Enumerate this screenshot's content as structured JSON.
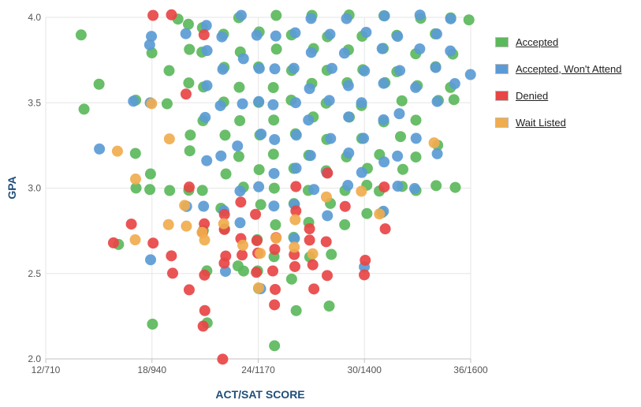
{
  "chart_data": {
    "type": "scatter",
    "xlabel": "ACT/SAT SCORE",
    "ylabel": "GPA",
    "x_ticks": [
      "12/710",
      "18/940",
      "24/1170",
      "30/1400",
      "36/1600"
    ],
    "y_ticks": [
      "2.0",
      "2.5",
      "3.0",
      "3.5",
      "4.0"
    ],
    "xlim": [
      12,
      36
    ],
    "ylim": [
      2.0,
      4.0
    ],
    "grid": true,
    "legend_position": "right",
    "series": [
      {
        "name": "Accepted",
        "color": "#5cb85c",
        "points": [
          [
            14,
            3.9
          ],
          [
            14,
            3.45
          ],
          [
            15,
            3.6
          ],
          [
            17,
            3.0
          ],
          [
            17,
            3.2
          ],
          [
            17,
            3.5
          ],
          [
            16,
            2.67
          ],
          [
            18,
            2.2
          ],
          [
            18,
            3.0
          ],
          [
            18,
            3.1
          ],
          [
            18,
            3.8
          ],
          [
            19,
            3.7
          ],
          [
            19,
            3.5
          ],
          [
            19,
            3.0
          ],
          [
            19.5,
            4.0
          ],
          [
            20,
            3.0
          ],
          [
            20,
            3.3
          ],
          [
            20,
            3.6
          ],
          [
            20,
            3.8
          ],
          [
            20,
            3.95
          ],
          [
            20,
            3.2
          ],
          [
            21,
            2.5
          ],
          [
            21,
            2.2
          ],
          [
            21,
            2.77
          ],
          [
            21,
            3.0
          ],
          [
            21,
            3.4
          ],
          [
            21,
            3.6
          ],
          [
            21,
            3.8
          ],
          [
            21,
            3.95
          ],
          [
            22,
            2.9
          ],
          [
            22,
            3.1
          ],
          [
            22,
            3.3
          ],
          [
            22,
            3.5
          ],
          [
            22,
            3.7
          ],
          [
            22,
            3.9
          ],
          [
            22,
            2.75
          ],
          [
            23,
            2.5
          ],
          [
            23,
            3.0
          ],
          [
            23,
            3.2
          ],
          [
            23,
            3.4
          ],
          [
            23,
            3.6
          ],
          [
            23,
            3.8
          ],
          [
            23,
            4.0
          ],
          [
            23,
            2.55
          ],
          [
            24,
            2.7
          ],
          [
            24,
            2.9
          ],
          [
            24,
            3.1
          ],
          [
            24,
            3.3
          ],
          [
            24,
            3.5
          ],
          [
            24,
            3.7
          ],
          [
            24,
            3.9
          ],
          [
            24,
            2.4
          ],
          [
            24,
            2.5
          ],
          [
            25,
            2.08
          ],
          [
            25,
            2.6
          ],
          [
            25,
            2.8
          ],
          [
            25,
            3.0
          ],
          [
            25,
            3.2
          ],
          [
            25,
            3.4
          ],
          [
            25,
            3.6
          ],
          [
            25,
            3.8
          ],
          [
            25,
            4.0
          ],
          [
            26,
            2.27
          ],
          [
            26,
            2.7
          ],
          [
            26,
            2.9
          ],
          [
            26,
            3.1
          ],
          [
            26,
            3.3
          ],
          [
            26,
            3.5
          ],
          [
            26,
            3.7
          ],
          [
            26,
            3.9
          ],
          [
            26,
            2.48
          ],
          [
            27,
            2.6
          ],
          [
            27,
            2.8
          ],
          [
            27,
            3.0
          ],
          [
            27,
            3.2
          ],
          [
            27,
            3.4
          ],
          [
            27,
            3.6
          ],
          [
            27,
            3.8
          ],
          [
            27,
            4.0
          ],
          [
            28,
            2.3
          ],
          [
            28,
            2.6
          ],
          [
            28,
            2.9
          ],
          [
            28,
            3.1
          ],
          [
            28,
            3.3
          ],
          [
            28,
            3.5
          ],
          [
            28,
            3.7
          ],
          [
            28,
            3.9
          ],
          [
            29,
            2.8
          ],
          [
            29,
            3.0
          ],
          [
            29,
            3.2
          ],
          [
            29,
            3.4
          ],
          [
            29,
            3.6
          ],
          [
            29,
            3.8
          ],
          [
            29,
            4.0
          ],
          [
            30,
            2.85
          ],
          [
            30,
            3.0
          ],
          [
            30,
            3.1
          ],
          [
            30,
            3.3
          ],
          [
            30,
            3.5
          ],
          [
            30,
            3.7
          ],
          [
            30,
            3.9
          ],
          [
            31,
            2.87
          ],
          [
            31,
            3.0
          ],
          [
            31,
            3.2
          ],
          [
            31,
            3.4
          ],
          [
            31,
            3.6
          ],
          [
            31,
            3.8
          ],
          [
            31,
            4.0
          ],
          [
            32,
            3.0
          ],
          [
            32,
            3.1
          ],
          [
            32,
            3.3
          ],
          [
            32,
            3.5
          ],
          [
            32,
            3.7
          ],
          [
            32,
            3.9
          ],
          [
            33,
            3.0
          ],
          [
            33,
            3.2
          ],
          [
            33,
            3.4
          ],
          [
            33,
            3.6
          ],
          [
            33,
            3.8
          ],
          [
            33,
            4.0
          ],
          [
            34,
            3.0
          ],
          [
            34,
            3.25
          ],
          [
            34,
            3.5
          ],
          [
            34,
            3.7
          ],
          [
            34,
            3.9
          ],
          [
            35,
            3.0
          ],
          [
            35,
            3.5
          ],
          [
            35,
            3.6
          ],
          [
            35,
            3.8
          ],
          [
            35,
            4.0
          ],
          [
            36,
            4.0
          ]
        ]
      },
      {
        "name": "Accepted, Won't Attend",
        "color": "#5b9bd5",
        "points": [
          [
            15,
            3.22
          ],
          [
            17,
            3.5
          ],
          [
            18,
            2.59
          ],
          [
            18,
            3.5
          ],
          [
            18,
            3.85
          ],
          [
            18,
            3.9
          ],
          [
            20,
            2.9
          ],
          [
            20,
            3.92
          ],
          [
            21,
            2.9
          ],
          [
            21,
            3.15
          ],
          [
            21,
            3.4
          ],
          [
            21,
            3.6
          ],
          [
            21,
            3.8
          ],
          [
            21,
            3.95
          ],
          [
            22,
            2.51
          ],
          [
            22,
            2.85
          ],
          [
            22,
            3.2
          ],
          [
            22,
            3.5
          ],
          [
            22,
            3.7
          ],
          [
            22,
            3.9
          ],
          [
            23,
            2.8
          ],
          [
            23,
            3.0
          ],
          [
            23,
            3.25
          ],
          [
            23,
            3.5
          ],
          [
            23,
            3.75
          ],
          [
            23,
            4.0
          ],
          [
            24,
            2.4
          ],
          [
            24,
            3.0
          ],
          [
            24,
            3.3
          ],
          [
            24,
            3.5
          ],
          [
            24,
            3.7
          ],
          [
            24,
            3.9
          ],
          [
            25,
            2.9
          ],
          [
            25,
            3.1
          ],
          [
            25,
            3.3
          ],
          [
            25,
            3.5
          ],
          [
            25,
            3.7
          ],
          [
            25,
            3.9
          ],
          [
            26,
            2.72
          ],
          [
            26,
            2.9
          ],
          [
            26,
            3.1
          ],
          [
            26,
            3.3
          ],
          [
            26,
            3.5
          ],
          [
            26,
            3.7
          ],
          [
            26,
            3.9
          ],
          [
            27,
            2.98
          ],
          [
            27,
            3.2
          ],
          [
            27,
            3.4
          ],
          [
            27,
            3.6
          ],
          [
            27,
            3.8
          ],
          [
            27,
            4.0
          ],
          [
            28,
            2.85
          ],
          [
            28,
            3.1
          ],
          [
            28,
            3.3
          ],
          [
            28,
            3.5
          ],
          [
            28,
            3.7
          ],
          [
            28,
            3.9
          ],
          [
            29,
            3.0
          ],
          [
            29,
            3.2
          ],
          [
            29,
            3.4
          ],
          [
            29,
            3.6
          ],
          [
            29,
            3.8
          ],
          [
            29,
            4.0
          ],
          [
            30,
            2.55
          ],
          [
            30,
            3.1
          ],
          [
            30,
            3.3
          ],
          [
            30,
            3.5
          ],
          [
            30,
            3.7
          ],
          [
            30,
            3.9
          ],
          [
            31,
            2.85
          ],
          [
            31,
            3.15
          ],
          [
            31,
            3.4
          ],
          [
            31,
            3.6
          ],
          [
            31,
            3.8
          ],
          [
            31,
            4.0
          ],
          [
            32,
            3.0
          ],
          [
            32,
            3.2
          ],
          [
            32,
            3.45
          ],
          [
            32,
            3.7
          ],
          [
            32,
            3.9
          ],
          [
            33,
            3.0
          ],
          [
            33,
            3.3
          ],
          [
            33,
            3.6
          ],
          [
            33,
            3.8
          ],
          [
            33,
            4.0
          ],
          [
            34,
            3.2
          ],
          [
            34,
            3.5
          ],
          [
            34,
            3.7
          ],
          [
            34,
            3.9
          ],
          [
            35,
            3.6
          ],
          [
            35,
            3.8
          ],
          [
            35,
            4.0
          ],
          [
            36,
            3.67
          ]
        ]
      },
      {
        "name": "Denied",
        "color": "#e84545",
        "points": [
          [
            16,
            2.69
          ],
          [
            17,
            2.8
          ],
          [
            18,
            2.67
          ],
          [
            18,
            4.0
          ],
          [
            19,
            2.5
          ],
          [
            19,
            2.6
          ],
          [
            19,
            4.0
          ],
          [
            20,
            2.4
          ],
          [
            20,
            3.0
          ],
          [
            20,
            3.55
          ],
          [
            21,
            2.2
          ],
          [
            21,
            2.3
          ],
          [
            21,
            2.5
          ],
          [
            21,
            2.75
          ],
          [
            21,
            2.8
          ],
          [
            21,
            3.9
          ],
          [
            22,
            2.0
          ],
          [
            22,
            2.55
          ],
          [
            22,
            2.6
          ],
          [
            22,
            2.75
          ],
          [
            22,
            2.83
          ],
          [
            23,
            2.6
          ],
          [
            23,
            2.7
          ],
          [
            23,
            2.9
          ],
          [
            24,
            2.5
          ],
          [
            24,
            2.62
          ],
          [
            24,
            2.7
          ],
          [
            24,
            2.85
          ],
          [
            25,
            2.33
          ],
          [
            25,
            2.42
          ],
          [
            25,
            2.53
          ],
          [
            25,
            2.65
          ],
          [
            25,
            2.7
          ],
          [
            26,
            2.53
          ],
          [
            26,
            2.6
          ],
          [
            26,
            2.85
          ],
          [
            26,
            3.0
          ],
          [
            27,
            2.4
          ],
          [
            27,
            2.55
          ],
          [
            27,
            2.7
          ],
          [
            27,
            2.78
          ],
          [
            28,
            2.5
          ],
          [
            28,
            2.7
          ],
          [
            28,
            3.1
          ],
          [
            29,
            2.9
          ],
          [
            30,
            2.5
          ],
          [
            30,
            2.58
          ],
          [
            31,
            2.75
          ],
          [
            31,
            3.0
          ]
        ]
      },
      {
        "name": "Wait Listed",
        "color": "#f0ad4e",
        "points": [
          [
            16,
            3.2
          ],
          [
            17,
            3.05
          ],
          [
            17,
            2.68
          ],
          [
            18,
            3.5
          ],
          [
            19,
            2.8
          ],
          [
            19,
            3.3
          ],
          [
            20,
            2.78
          ],
          [
            20,
            2.9
          ],
          [
            21,
            2.7
          ],
          [
            21,
            2.75
          ],
          [
            22,
            2.8
          ],
          [
            23,
            2.65
          ],
          [
            24,
            2.6
          ],
          [
            24,
            2.4
          ],
          [
            25,
            2.7
          ],
          [
            26,
            2.65
          ],
          [
            26,
            2.8
          ],
          [
            27,
            2.6
          ],
          [
            28,
            2.95
          ],
          [
            30,
            3.0
          ],
          [
            31,
            2.85
          ],
          [
            34,
            3.28
          ]
        ]
      }
    ]
  }
}
